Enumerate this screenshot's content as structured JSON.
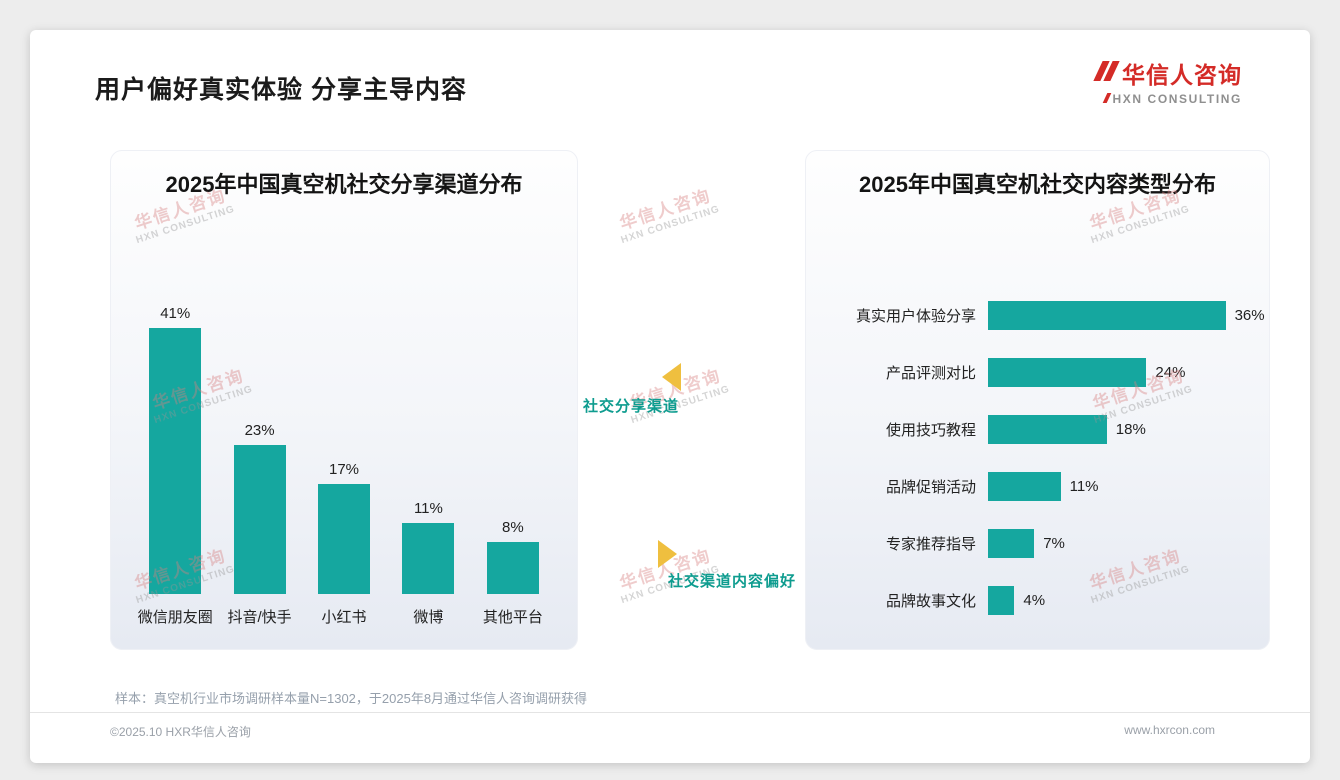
{
  "page": {
    "title": "用户偏好真实体验 分享主导内容",
    "footnote": "样本：真空机行业市场调研样本量N=1302，于2025年8月通过华信人咨询调研获得",
    "footer_left": "©2025.10 HXR华信人咨询",
    "footer_right": "www.hxrcon.com"
  },
  "logo": {
    "name_cn": "华信人咨询",
    "name_en": "HXN CONSULTING"
  },
  "watermark": {
    "line1": "华信人咨询",
    "line2": "HXN CONSULTING"
  },
  "middle": {
    "top_label": "社交分享渠道",
    "bottom_label": "社交渠道内容偏好"
  },
  "colors": {
    "bar": "#15A79F",
    "accent_red": "#D42B27",
    "label_teal": "#0E9C8F",
    "arrow_gold": "#EFBF3F"
  },
  "chart_data": [
    {
      "type": "bar",
      "orientation": "vertical",
      "title": "2025年中国真空机社交分享渠道分布",
      "categories": [
        "微信朋友圈",
        "抖音/快手",
        "小红书",
        "微博",
        "其他平台"
      ],
      "values": [
        41,
        23,
        17,
        11,
        8
      ],
      "data_labels": [
        "41%",
        "23%",
        "17%",
        "11%",
        "8%"
      ],
      "unit": "%",
      "ylim": [
        0,
        45
      ],
      "grid": false,
      "legend": false
    },
    {
      "type": "bar",
      "orientation": "horizontal",
      "title": "2025年中国真空机社交内容类型分布",
      "categories": [
        "真实用户体验分享",
        "产品评测对比",
        "使用技巧教程",
        "品牌促销活动",
        "专家推荐指导",
        "品牌故事文化"
      ],
      "values": [
        36,
        24,
        18,
        11,
        7,
        4
      ],
      "data_labels": [
        "36%",
        "24%",
        "18%",
        "11%",
        "7%",
        "4%"
      ],
      "unit": "%",
      "xlim": [
        0,
        40
      ],
      "grid": false,
      "legend": false
    }
  ]
}
